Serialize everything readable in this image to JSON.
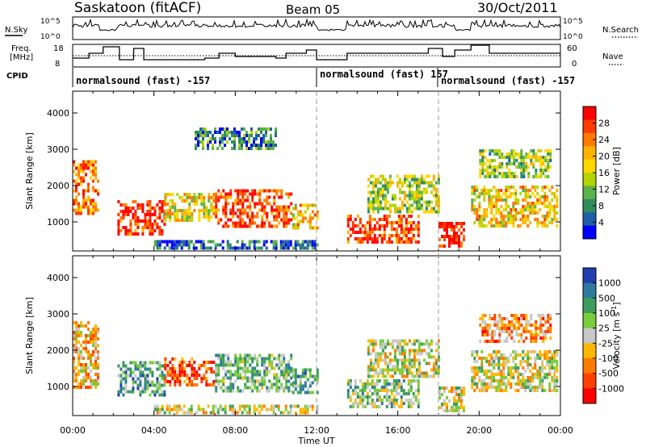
{
  "header": {
    "station": "Saskatoon (fitACF)",
    "beam": "Beam 05",
    "date": "30/Oct/2011"
  },
  "panels": {
    "nsky_label": "N.Sky",
    "nsky_ticks": [
      "10^5",
      "10^0"
    ],
    "nsearch_label": "N.Search",
    "nsearch_ticks": [
      "10^5",
      "10^0"
    ],
    "freq_label_1": "Freq.",
    "freq_label_2": "[MHz]",
    "freq_ticks": [
      "18",
      "8"
    ],
    "nave_label": "Nave",
    "nave_ticks": [
      "60",
      "0"
    ],
    "cpid_label": "CPID",
    "cpid_segments": [
      {
        "text": "normalsound (fast) -157"
      },
      {
        "text": "normalsound (fast) 157"
      },
      {
        "text": "normalsound (fast) -157"
      }
    ]
  },
  "axes": {
    "ylabel": "Slant Range [km]",
    "yticks": [
      "4000",
      "3000",
      "2000",
      "1000"
    ],
    "xticks": [
      "00:00",
      "04:00",
      "08:00",
      "12:00",
      "16:00",
      "20:00",
      "00:00"
    ],
    "xlabel": "Time UT"
  },
  "colorbars": {
    "power": {
      "label": "Power [dB]",
      "ticks": [
        "28",
        "24",
        "20",
        "16",
        "12",
        "8",
        "4"
      ],
      "colors": [
        "#ff0000",
        "#ff3a00",
        "#ff7a00",
        "#ffb300",
        "#ffd800",
        "#b5d400",
        "#5cb34a",
        "#2e8c5c",
        "#1f5fa8",
        "#0000ff"
      ]
    },
    "velocity": {
      "label": "Velocity [m s",
      "label_exp": "-1",
      "ticks": [
        "1000",
        "500",
        "100",
        "25",
        "-25",
        "-100",
        "-500",
        "-1000"
      ],
      "colors": [
        "#1f3fb0",
        "#2e7a9c",
        "#3c9e5a",
        "#7acc3c",
        "#c8c8c8",
        "#ffb800",
        "#ff7a00",
        "#ff4000",
        "#ff0000"
      ]
    }
  },
  "chart_data": {
    "type": "heatmap",
    "title": "Saskatoon (fitACF) Beam 05 30/Oct/2011",
    "xlabel": "Time UT",
    "ylabel": "Slant Range [km]",
    "xlim_hours": [
      0,
      24
    ],
    "ylim_km": [
      200,
      4600
    ],
    "cpid_boundaries_hours": [
      12,
      18
    ],
    "power_blobs": [
      {
        "t0": 0.0,
        "t1": 1.3,
        "r0": 1200,
        "r1": 2700,
        "level": 0.75
      },
      {
        "t0": 2.2,
        "t1": 4.5,
        "r0": 700,
        "r1": 1600,
        "level": 0.9
      },
      {
        "t0": 4.5,
        "t1": 7.0,
        "r0": 1000,
        "r1": 1800,
        "level": 0.55
      },
      {
        "t0": 7.0,
        "t1": 10.8,
        "r0": 900,
        "r1": 1900,
        "level": 0.85
      },
      {
        "t0": 10.8,
        "t1": 12.0,
        "r0": 800,
        "r1": 1500,
        "level": 0.6
      },
      {
        "t0": 13.5,
        "t1": 17.0,
        "r0": 400,
        "r1": 1200,
        "level": 0.85
      },
      {
        "t0": 14.5,
        "t1": 18.0,
        "r0": 1300,
        "r1": 2300,
        "level": 0.45
      },
      {
        "t0": 18.0,
        "t1": 19.3,
        "r0": 300,
        "r1": 1000,
        "level": 0.95
      },
      {
        "t0": 19.6,
        "t1": 23.8,
        "r0": 900,
        "r1": 2000,
        "level": 0.6
      },
      {
        "t0": 20.0,
        "t1": 23.5,
        "r0": 2200,
        "r1": 3000,
        "level": 0.4
      },
      {
        "t0": 4.0,
        "t1": 12.0,
        "r0": 250,
        "r1": 500,
        "level": 0.15
      },
      {
        "t0": 6.0,
        "t1": 10.0,
        "r0": 3000,
        "r1": 3600,
        "level": 0.25
      }
    ],
    "velocity_blobs": [
      {
        "t0": 0.0,
        "t1": 1.3,
        "r0": 1000,
        "r1": 2800,
        "level": 0.4
      },
      {
        "t0": 2.2,
        "t1": 4.5,
        "r0": 800,
        "r1": 1700,
        "level": 0.7
      },
      {
        "t0": 4.5,
        "t1": 7.0,
        "r0": 1000,
        "r1": 1800,
        "level": 0.2
      },
      {
        "t0": 7.0,
        "t1": 10.8,
        "r0": 900,
        "r1": 1900,
        "level": 0.65
      },
      {
        "t0": 10.8,
        "t1": 12.0,
        "r0": 800,
        "r1": 1500,
        "level": 0.7
      },
      {
        "t0": 13.5,
        "t1": 17.0,
        "r0": 400,
        "r1": 1200,
        "level": 0.6
      },
      {
        "t0": 14.5,
        "t1": 18.0,
        "r0": 1300,
        "r1": 2300,
        "level": 0.5
      },
      {
        "t0": 18.0,
        "t1": 19.3,
        "r0": 300,
        "r1": 1000,
        "level": 0.5
      },
      {
        "t0": 19.6,
        "t1": 23.8,
        "r0": 900,
        "r1": 2000,
        "level": 0.5
      },
      {
        "t0": 20.0,
        "t1": 23.5,
        "r0": 2200,
        "r1": 3000,
        "level": 0.3
      },
      {
        "t0": 4.0,
        "t1": 12.0,
        "r0": 250,
        "r1": 500,
        "level": 0.5
      }
    ]
  }
}
